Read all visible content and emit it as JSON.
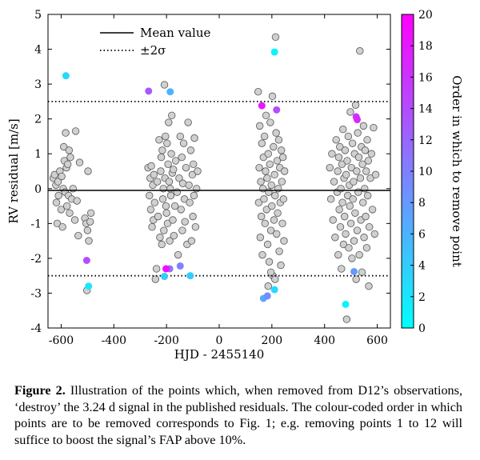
{
  "chart_data": {
    "type": "scatter",
    "title": "",
    "xlabel": "HJD - 2455140",
    "ylabel": "RV residual [m/s]",
    "xlim": [
      -650,
      650
    ],
    "ylim": [
      -4,
      5
    ],
    "xticks": [
      "-600",
      "-400",
      "-200",
      "0",
      "200",
      "400",
      "600"
    ],
    "yticks": [
      "-4",
      "-3",
      "-2",
      "-1",
      "0",
      "1",
      "2",
      "3",
      "4",
      "5"
    ],
    "mean_value": -0.05,
    "two_sigma_upper": 2.5,
    "two_sigma_lower": -2.5,
    "legend": {
      "position": "top-left",
      "entries": [
        {
          "label": "Mean value",
          "style": "solid"
        },
        {
          "label": "±2σ",
          "style": "dotted"
        }
      ]
    },
    "colorbar": {
      "label": "Order in which to remove point",
      "range": [
        0,
        20
      ],
      "ticks": [
        "0",
        "2",
        "4",
        "6",
        "8",
        "10",
        "12",
        "14",
        "16",
        "18",
        "20"
      ],
      "color_low": "#00ffff",
      "color_high": "#ff00ff"
    },
    "point_color": "#d0d0d0",
    "highlighted": [
      {
        "x": 210,
        "y": 3.92,
        "order": 1
      },
      {
        "x": 480,
        "y": -3.32,
        "order": 1
      },
      {
        "x": -496,
        "y": -2.8,
        "order": 2
      },
      {
        "x": -582,
        "y": 3.24,
        "order": 3
      },
      {
        "x": 210,
        "y": -2.9,
        "order": 3
      },
      {
        "x": -110,
        "y": -2.5,
        "order": 4
      },
      {
        "x": -208,
        "y": -2.52,
        "order": 4
      },
      {
        "x": -186,
        "y": 2.78,
        "order": 6
      },
      {
        "x": 168,
        "y": -3.15,
        "order": 7
      },
      {
        "x": 512,
        "y": -2.38,
        "order": 8
      },
      {
        "x": 183,
        "y": -3.08,
        "order": 9
      },
      {
        "x": -148,
        "y": -2.22,
        "order": 10
      },
      {
        "x": -188,
        "y": -2.3,
        "order": 11
      },
      {
        "x": -268,
        "y": 2.8,
        "order": 13
      },
      {
        "x": -503,
        "y": -2.06,
        "order": 14
      },
      {
        "x": 218,
        "y": 2.26,
        "order": 14
      },
      {
        "x": 520,
        "y": 2.06,
        "order": 16
      },
      {
        "x": 524,
        "y": 1.98,
        "order": 17
      },
      {
        "x": 162,
        "y": 2.38,
        "order": 18
      },
      {
        "x": -202,
        "y": -2.3,
        "order": 19
      }
    ],
    "points": [
      [
        -630,
        0.3
      ],
      [
        -625,
        0.4
      ],
      [
        -620,
        0.1
      ],
      [
        -618,
        -0.4
      ],
      [
        -615,
        -1.0
      ],
      [
        -612,
        0.2
      ],
      [
        -610,
        -0.2
      ],
      [
        -605,
        0.5
      ],
      [
        -600,
        -0.6
      ],
      [
        -598,
        0.35
      ],
      [
        -595,
        -1.1
      ],
      [
        -592,
        0.0
      ],
      [
        -590,
        1.2
      ],
      [
        -588,
        0.8
      ],
      [
        -585,
        -0.1
      ],
      [
        -583,
        1.6
      ],
      [
        -580,
        0.6
      ],
      [
        -578,
        -0.5
      ],
      [
        -575,
        0.7
      ],
      [
        -572,
        -0.2
      ],
      [
        -570,
        1.1
      ],
      [
        -568,
        -0.7
      ],
      [
        -565,
        0.9
      ],
      [
        -560,
        -0.3
      ],
      [
        -555,
        0.0
      ],
      [
        -548,
        -0.9
      ],
      [
        -545,
        1.65
      ],
      [
        -540,
        -0.35
      ],
      [
        -535,
        -1.35
      ],
      [
        -530,
        0.75
      ],
      [
        -510,
        -0.85
      ],
      [
        -505,
        -1.0
      ],
      [
        -502,
        -2.92
      ],
      [
        -500,
        -1.2
      ],
      [
        -498,
        0.5
      ],
      [
        -495,
        -1.5
      ],
      [
        -490,
        -0.95
      ],
      [
        -487,
        -0.7
      ],
      [
        -270,
        0.6
      ],
      [
        -265,
        -0.2
      ],
      [
        -262,
        0.3
      ],
      [
        -260,
        -0.6
      ],
      [
        -258,
        0.65
      ],
      [
        -255,
        -1.1
      ],
      [
        -252,
        0.1
      ],
      [
        -250,
        -0.9
      ],
      [
        -248,
        0.4
      ],
      [
        -245,
        -0.4
      ],
      [
        -242,
        -2.6
      ],
      [
        -238,
        -2.3
      ],
      [
        -235,
        0.2
      ],
      [
        -232,
        -0.8
      ],
      [
        -228,
        1.4
      ],
      [
        -225,
        -1.4
      ],
      [
        -222,
        0.5
      ],
      [
        -220,
        0.9
      ],
      [
        -218,
        -1.6
      ],
      [
        -216,
        1.1
      ],
      [
        -214,
        -0.3
      ],
      [
        -212,
        0.0
      ],
      [
        -210,
        -1.2
      ],
      [
        -208,
        2.98
      ],
      [
        -206,
        0.3
      ],
      [
        -204,
        1.5
      ],
      [
        -202,
        -0.5
      ],
      [
        -200,
        -0.7
      ],
      [
        -198,
        1.3
      ],
      [
        -196,
        -1.0
      ],
      [
        -194,
        0.7
      ],
      [
        -192,
        1.9
      ],
      [
        -190,
        0.2
      ],
      [
        -188,
        -1.5
      ],
      [
        -186,
        0.0
      ],
      [
        -184,
        -0.2
      ],
      [
        -182,
        1.0
      ],
      [
        -180,
        2.1
      ],
      [
        -178,
        0.45
      ],
      [
        -176,
        -0.9
      ],
      [
        -174,
        0.55
      ],
      [
        -172,
        -1.35
      ],
      [
        -168,
        -0.5
      ],
      [
        -165,
        0.8
      ],
      [
        -160,
        -0.1
      ],
      [
        -156,
        -1.9
      ],
      [
        -152,
        0.3
      ],
      [
        -148,
        1.5
      ],
      [
        -145,
        -0.6
      ],
      [
        -142,
        0.9
      ],
      [
        -140,
        -1.2
      ],
      [
        -138,
        0.15
      ],
      [
        -135,
        1.3
      ],
      [
        -132,
        -0.3
      ],
      [
        -130,
        -0.95
      ],
      [
        -126,
        0.6
      ],
      [
        -122,
        -1.6
      ],
      [
        -118,
        1.9
      ],
      [
        -115,
        0.1
      ],
      [
        -112,
        -0.4
      ],
      [
        -108,
        1.1
      ],
      [
        -105,
        -1.5
      ],
      [
        -102,
        0.4
      ],
      [
        -100,
        -0.8
      ],
      [
        -98,
        0.7
      ],
      [
        -96,
        -0.2
      ],
      [
        -94,
        1.45
      ],
      [
        -90,
        -1.1
      ],
      [
        -86,
        0.0
      ],
      [
        -82,
        0.5
      ],
      [
        148,
        2.78
      ],
      [
        150,
        -0.4
      ],
      [
        152,
        0.6
      ],
      [
        154,
        1.8
      ],
      [
        156,
        -1.4
      ],
      [
        158,
        0.2
      ],
      [
        160,
        -0.8
      ],
      [
        162,
        1.3
      ],
      [
        164,
        -1.9
      ],
      [
        166,
        0.0
      ],
      [
        168,
        0.9
      ],
      [
        170,
        -0.3
      ],
      [
        172,
        1.5
      ],
      [
        174,
        -1.0
      ],
      [
        176,
        0.5
      ],
      [
        178,
        2.1
      ],
      [
        180,
        -0.6
      ],
      [
        182,
        0.3
      ],
      [
        184,
        -1.6
      ],
      [
        186,
        1.0
      ],
      [
        188,
        -0.1
      ],
      [
        190,
        -2.1
      ],
      [
        192,
        0.7
      ],
      [
        194,
        1.9
      ],
      [
        196,
        -1.2
      ],
      [
        198,
        0.1
      ],
      [
        200,
        -0.5
      ],
      [
        202,
        2.65
      ],
      [
        204,
        -2.5
      ],
      [
        206,
        1.2
      ],
      [
        208,
        -0.9
      ],
      [
        210,
        0.4
      ],
      [
        212,
        -0.2
      ],
      [
        214,
        4.35
      ],
      [
        216,
        1.6
      ],
      [
        218,
        -1.3
      ],
      [
        220,
        0.8
      ],
      [
        222,
        -0.7
      ],
      [
        224,
        0.0
      ],
      [
        226,
        1.4
      ],
      [
        228,
        -1.8
      ],
      [
        230,
        0.6
      ],
      [
        232,
        -0.4
      ],
      [
        234,
        -2.2
      ],
      [
        236,
        1.1
      ],
      [
        238,
        0.2
      ],
      [
        240,
        -1.0
      ],
      [
        242,
        0.9
      ],
      [
        244,
        -0.3
      ],
      [
        246,
        -1.5
      ],
      [
        248,
        0.5
      ],
      [
        212,
        -2.6
      ],
      [
        196,
        -2.4
      ],
      [
        186,
        -2.8
      ],
      [
        420,
        0.6
      ],
      [
        424,
        -0.3
      ],
      [
        428,
        1.0
      ],
      [
        432,
        -0.9
      ],
      [
        436,
        0.2
      ],
      [
        440,
        -1.4
      ],
      [
        444,
        1.4
      ],
      [
        448,
        -0.1
      ],
      [
        450,
        0.5
      ],
      [
        452,
        -1.9
      ],
      [
        454,
        0.9
      ],
      [
        456,
        -0.6
      ],
      [
        458,
        1.2
      ],
      [
        460,
        -1.1
      ],
      [
        462,
        0.0
      ],
      [
        464,
        -2.3
      ],
      [
        466,
        0.7
      ],
      [
        468,
        -0.4
      ],
      [
        470,
        1.7
      ],
      [
        472,
        -1.6
      ],
      [
        474,
        0.3
      ],
      [
        476,
        -0.8
      ],
      [
        478,
        1.1
      ],
      [
        480,
        -1.3
      ],
      [
        482,
        0.4
      ],
      [
        484,
        -3.75
      ],
      [
        486,
        0.8
      ],
      [
        488,
        -0.2
      ],
      [
        490,
        1.5
      ],
      [
        492,
        -1.7
      ],
      [
        494,
        0.1
      ],
      [
        496,
        -0.5
      ],
      [
        498,
        2.2
      ],
      [
        500,
        -1.0
      ],
      [
        502,
        0.6
      ],
      [
        504,
        -2.0
      ],
      [
        506,
        1.3
      ],
      [
        508,
        -0.3
      ],
      [
        510,
        0.2
      ],
      [
        512,
        -1.5
      ],
      [
        514,
        1.0
      ],
      [
        516,
        -0.7
      ],
      [
        518,
        2.4
      ],
      [
        520,
        -2.6
      ],
      [
        522,
        0.5
      ],
      [
        524,
        -1.2
      ],
      [
        526,
        1.6
      ],
      [
        528,
        -0.1
      ],
      [
        530,
        0.9
      ],
      [
        532,
        -1.9
      ],
      [
        534,
        3.95
      ],
      [
        536,
        0.3
      ],
      [
        538,
        -0.9
      ],
      [
        540,
        1.2
      ],
      [
        542,
        -2.4
      ],
      [
        544,
        0.7
      ],
      [
        546,
        -0.4
      ],
      [
        548,
        1.8
      ],
      [
        550,
        -1.4
      ],
      [
        552,
        0.0
      ],
      [
        554,
        1.1
      ],
      [
        556,
        -0.8
      ],
      [
        558,
        0.5
      ],
      [
        560,
        -1.7
      ],
      [
        562,
        1.4
      ],
      [
        564,
        -0.2
      ],
      [
        566,
        0.8
      ],
      [
        568,
        -2.8
      ],
      [
        570,
        -1.1
      ],
      [
        574,
        0.3
      ],
      [
        578,
        1.0
      ],
      [
        582,
        -0.6
      ],
      [
        586,
        1.75
      ],
      [
        590,
        -1.3
      ],
      [
        594,
        0.4
      ]
    ]
  },
  "caption": {
    "label": "Figure 2.",
    "text": " Illustration of the points which, when removed from D12’s observations, ‘destroy’ the 3.24 d signal in the published residuals. The colour-coded order in which points are to be removed corresponds to Fig. 1; e.g. removing points 1 to 12 will suffice to boost the signal’s FAP above 10%."
  }
}
